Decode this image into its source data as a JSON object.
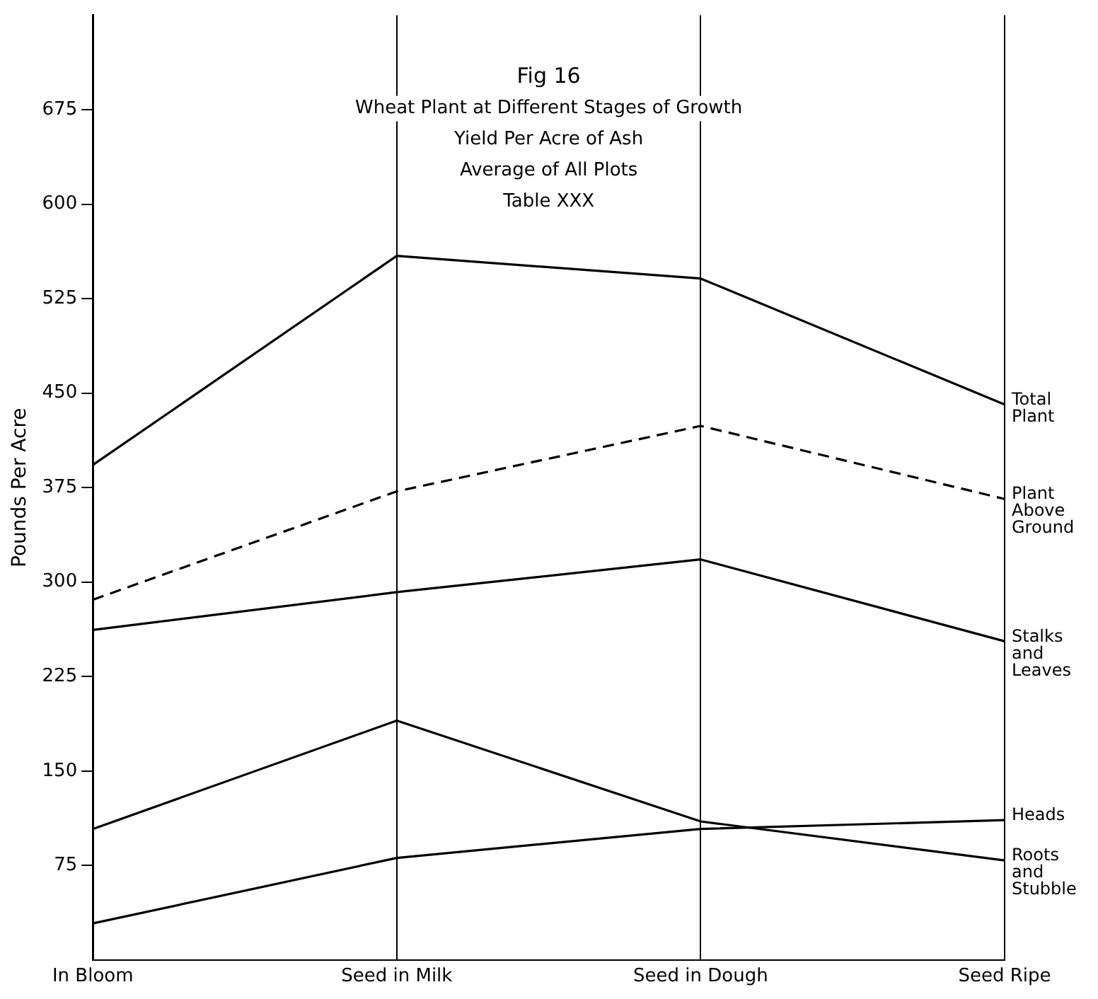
{
  "chart_data": {
    "type": "line",
    "title": "Fig 16",
    "subtitle": "Wheat Plant at Different Stages of Growth\nYield Per Acre of Ash\nAverage of All Plots\nTable XXX",
    "ylabel": "Pounds Per Acre",
    "categories": [
      "In Bloom",
      "Seed in Milk",
      "Seed in Dough",
      "Seed Ripe"
    ],
    "series": [
      {
        "name": "Total Plant",
        "color": "#000000",
        "values": [
          393,
          559,
          541,
          441
        ]
      },
      {
        "name": "Plant Above Ground",
        "color": "#000000",
        "line_style": "dashed",
        "values": [
          286,
          372,
          424,
          366
        ]
      },
      {
        "name": "Stalks and Leaves",
        "color": "#000000",
        "values": [
          262,
          292,
          318,
          253
        ]
      },
      {
        "name": "Heads",
        "color": "#000000",
        "values": [
          29,
          81,
          104,
          111
        ]
      },
      {
        "name": "Roots and Stubble",
        "color": "#000000",
        "values": [
          104,
          190,
          110,
          79
        ]
      }
    ],
    "ylim": [
      0,
      750
    ],
    "yticks": [
      75,
      150,
      225,
      300,
      375,
      450,
      525,
      600,
      675
    ],
    "grid": "x",
    "legend": false,
    "marker": "none",
    "line_style": "solid"
  }
}
